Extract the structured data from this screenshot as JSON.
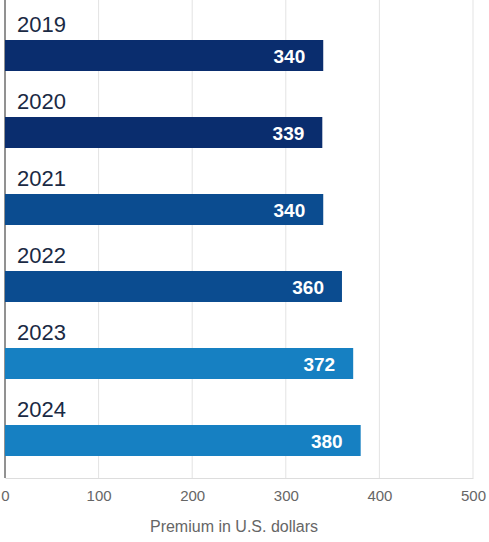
{
  "chart_data": {
    "type": "bar",
    "orientation": "horizontal",
    "categories": [
      "2019",
      "2020",
      "2021",
      "2022",
      "2023",
      "2024"
    ],
    "values": [
      340,
      339,
      340,
      360,
      372,
      380
    ],
    "colors": [
      "#0a2d6e",
      "#0a2d6e",
      "#0b4c90",
      "#0b4c90",
      "#1680c2",
      "#1680c2"
    ],
    "xlim": [
      0,
      500
    ],
    "xticks": [
      0,
      100,
      200,
      300,
      400,
      500
    ],
    "x_label": "Premium in U.S. dollars",
    "grid": true,
    "data_labels": true
  }
}
